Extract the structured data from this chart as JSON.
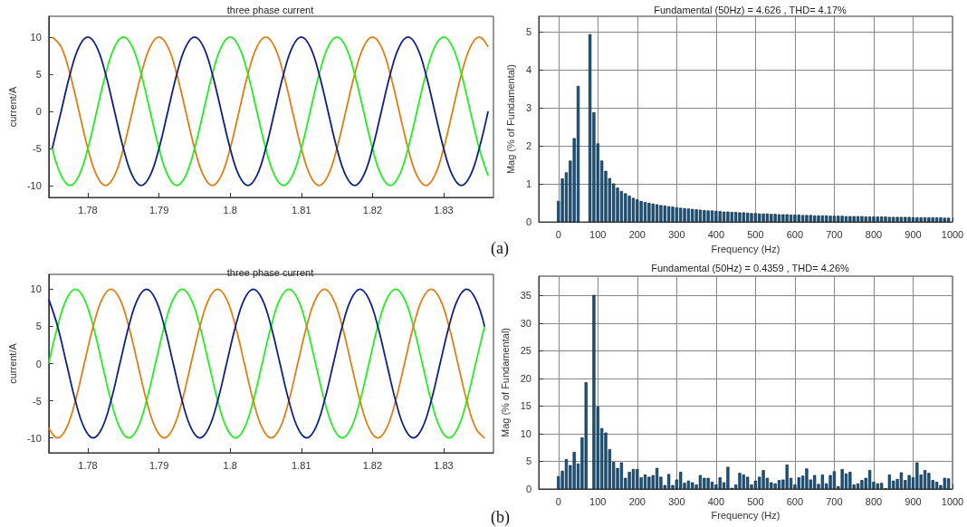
{
  "chart_data": [
    {
      "type": "line",
      "title": "three phase current",
      "ylabel": "current/A",
      "xlim": [
        1.7745,
        1.837
      ],
      "ylim": [
        -11.6,
        12.8
      ],
      "xticks": [
        1.78,
        1.79,
        1.8,
        1.81,
        1.82,
        1.83
      ],
      "yticks": [
        -10,
        -5,
        0,
        5,
        10
      ],
      "grid": false,
      "x": [
        1.775,
        1.77625,
        1.7775,
        1.77875,
        1.78,
        1.78125,
        1.7825,
        1.78375,
        1.785,
        1.78625,
        1.7875,
        1.78875,
        1.79,
        1.79125,
        1.7925,
        1.79375,
        1.795,
        1.79625,
        1.7975,
        1.79875,
        1.8,
        1.80125,
        1.8025,
        1.80375,
        1.805,
        1.80625,
        1.8075,
        1.80875,
        1.81,
        1.81125,
        1.8125,
        1.81375,
        1.815,
        1.81625,
        1.8175,
        1.81875,
        1.82,
        1.82125,
        1.8225,
        1.82375,
        1.825,
        1.82625,
        1.8275,
        1.82875,
        1.83,
        1.83125,
        1.8325,
        1.83375,
        1.835,
        1.83625
      ],
      "series": [
        {
          "color": "#dd7f12",
          "values": [
            10,
            8.66,
            5,
            0,
            -5,
            -8.66,
            -10,
            -8.66,
            -5,
            0,
            5,
            8.66,
            10,
            8.66,
            5,
            0,
            -5,
            -8.66,
            -10,
            -8.66,
            -5,
            0,
            5,
            8.66,
            10,
            8.66,
            5,
            0,
            -5,
            -8.66,
            -10,
            -8.66,
            -5,
            0,
            5,
            8.66,
            10,
            8.66,
            5,
            0,
            -5,
            -8.66,
            -10,
            -8.66,
            -5,
            0,
            5,
            8.66,
            10,
            8.66
          ]
        },
        {
          "color": "#22ee22",
          "values": [
            -5,
            -8.66,
            -10,
            -8.66,
            -5,
            0,
            5,
            8.66,
            10,
            8.66,
            5,
            0,
            -5,
            -8.66,
            -10,
            -8.66,
            -5,
            0,
            5,
            8.66,
            10,
            8.66,
            5,
            0,
            -5,
            -8.66,
            -10,
            -8.66,
            -5,
            0,
            5,
            8.66,
            10,
            8.66,
            5,
            0,
            -5,
            -8.66,
            -10,
            -8.66,
            -5,
            0,
            5,
            8.66,
            10,
            8.66,
            5,
            0,
            -5,
            -8.66
          ]
        },
        {
          "color": "#102080",
          "values": [
            -5,
            0,
            5,
            8.66,
            10,
            8.66,
            5,
            0,
            -5,
            -8.66,
            -10,
            -8.66,
            -5,
            0,
            5,
            8.66,
            10,
            8.66,
            5,
            0,
            -5,
            -8.66,
            -10,
            -8.66,
            -5,
            0,
            5,
            8.66,
            10,
            8.66,
            5,
            0,
            -5,
            -8.66,
            -10,
            -8.66,
            -5,
            0,
            5,
            8.66,
            10,
            8.66,
            5,
            0,
            -5,
            -8.66,
            -10,
            -8.66,
            -5,
            0
          ]
        }
      ]
    },
    {
      "type": "bar",
      "title": "Fundamental (50Hz) = 4.626 , THD= 4.17%",
      "xlabel": "Frequency (Hz)",
      "ylabel": "Mag (% of Fundamental)",
      "annotations": [
        "(a)"
      ],
      "xlim": [
        -50,
        1000
      ],
      "ylim": [
        0,
        5.4
      ],
      "xticks": [
        0,
        100,
        200,
        300,
        400,
        500,
        600,
        700,
        800,
        900,
        1000
      ],
      "yticks": [
        0,
        1,
        2,
        3,
        4,
        5
      ],
      "grid": true,
      "color": "#0d5c94",
      "x": [
        0,
        10,
        20,
        30,
        40,
        50,
        60,
        70,
        80,
        90,
        100,
        110,
        120,
        130,
        140,
        150,
        160,
        170,
        180,
        190,
        200,
        210,
        220,
        230,
        240,
        250,
        260,
        270,
        280,
        290,
        300,
        310,
        320,
        330,
        340,
        350,
        360,
        370,
        380,
        390,
        400,
        410,
        420,
        430,
        440,
        450,
        460,
        470,
        480,
        490,
        500,
        510,
        520,
        530,
        540,
        550,
        560,
        570,
        580,
        590,
        600,
        610,
        620,
        630,
        640,
        650,
        660,
        670,
        680,
        690,
        700,
        710,
        720,
        730,
        740,
        750,
        760,
        770,
        780,
        790,
        800,
        810,
        820,
        830,
        840,
        850,
        860,
        870,
        880,
        890,
        900,
        910,
        920,
        930,
        940,
        950,
        960,
        970,
        980,
        990
      ],
      "values": [
        0.55,
        1.14,
        1.3,
        1.61,
        2.2,
        3.57,
        null,
        null,
        4.93,
        2.88,
        2.06,
        1.61,
        1.34,
        1.15,
        1.01,
        0.9,
        0.81,
        0.75,
        0.69,
        0.63,
        0.59,
        0.55,
        0.52,
        0.5,
        0.48,
        0.46,
        0.44,
        0.43,
        0.41,
        0.4,
        0.38,
        0.37,
        0.36,
        0.35,
        0.34,
        0.33,
        0.32,
        0.31,
        0.3,
        0.3,
        0.29,
        0.28,
        0.27,
        0.27,
        0.26,
        0.26,
        0.25,
        0.25,
        0.24,
        0.23,
        0.23,
        0.22,
        0.22,
        0.22,
        0.21,
        0.21,
        0.2,
        0.2,
        0.2,
        0.19,
        0.19,
        0.19,
        0.18,
        0.18,
        0.18,
        0.17,
        0.17,
        0.17,
        0.17,
        0.16,
        0.16,
        0.16,
        0.16,
        0.15,
        0.15,
        0.15,
        0.15,
        0.15,
        0.14,
        0.14,
        0.14,
        0.14,
        0.14,
        0.14,
        0.13,
        0.13,
        0.13,
        0.13,
        0.13,
        0.13,
        0.12,
        0.12,
        0.12,
        0.12,
        0.12,
        0.12,
        0.12,
        0.12,
        0.11,
        0.11
      ]
    },
    {
      "type": "line",
      "title": "three phase current",
      "ylabel": "current/A",
      "xlim": [
        1.7745,
        1.837
      ],
      "ylim": [
        -12,
        12
      ],
      "xticks": [
        1.78,
        1.79,
        1.8,
        1.81,
        1.82,
        1.83
      ],
      "yticks": [
        -10,
        -5,
        0,
        5,
        10
      ],
      "grid": false,
      "x": [
        1.7745,
        1.77575,
        1.777,
        1.77825,
        1.7795,
        1.78075,
        1.782,
        1.78325,
        1.7845,
        1.78575,
        1.787,
        1.78825,
        1.7895,
        1.79075,
        1.792,
        1.79325,
        1.7945,
        1.79575,
        1.797,
        1.79825,
        1.7995,
        1.80075,
        1.802,
        1.80325,
        1.8045,
        1.80575,
        1.807,
        1.80825,
        1.8095,
        1.81075,
        1.812,
        1.81325,
        1.8145,
        1.81575,
        1.817,
        1.81825,
        1.8195,
        1.82075,
        1.822,
        1.82325,
        1.8245,
        1.82575,
        1.827,
        1.82825,
        1.8295,
        1.83075,
        1.832,
        1.83325,
        1.8345,
        1.83575
      ],
      "series": [
        {
          "color": "#22ee22",
          "values": [
            0,
            5,
            8.66,
            10,
            8.66,
            5,
            0,
            -5,
            -8.66,
            -10,
            -8.66,
            -5,
            0,
            5,
            8.66,
            10,
            8.66,
            5,
            0,
            -5,
            -8.66,
            -10,
            -8.66,
            -5,
            0,
            5,
            8.66,
            10,
            8.66,
            5,
            0,
            -5,
            -8.66,
            -10,
            -8.66,
            -5,
            0,
            5,
            8.66,
            10,
            8.66,
            5,
            0,
            -5,
            -8.66,
            -10,
            -8.66,
            -5,
            0,
            5
          ]
        },
        {
          "color": "#dd7f12",
          "values": [
            -8.66,
            -10,
            -8.66,
            -5,
            0,
            5,
            8.66,
            10,
            8.66,
            5,
            0,
            -5,
            -8.66,
            -10,
            -8.66,
            -5,
            0,
            5,
            8.66,
            10,
            8.66,
            5,
            0,
            -5,
            -8.66,
            -10,
            -8.66,
            -5,
            0,
            5,
            8.66,
            10,
            8.66,
            5,
            0,
            -5,
            -8.66,
            -10,
            -8.66,
            -5,
            0,
            5,
            8.66,
            10,
            8.66,
            5,
            0,
            -5,
            -8.66,
            -10
          ]
        },
        {
          "color": "#102080",
          "values": [
            8.66,
            5,
            0,
            -5,
            -8.66,
            -10,
            -8.66,
            -5,
            0,
            5,
            8.66,
            10,
            8.66,
            5,
            0,
            -5,
            -8.66,
            -10,
            -8.66,
            -5,
            0,
            5,
            8.66,
            10,
            8.66,
            5,
            0,
            -5,
            -8.66,
            -10,
            -8.66,
            -5,
            0,
            5,
            8.66,
            10,
            8.66,
            5,
            0,
            -5,
            -8.66,
            -10,
            -8.66,
            -5,
            0,
            5,
            8.66,
            10,
            8.66,
            5
          ]
        }
      ]
    },
    {
      "type": "bar",
      "title": "Fundamental (50Hz) = 0.4359 , THD= 4.26%",
      "xlabel": "Frequency (Hz)",
      "ylabel": "Mag (% of Fundamental)",
      "annotations": [
        "(b)"
      ],
      "xlim": [
        -50,
        1000
      ],
      "ylim": [
        0,
        38.5
      ],
      "xticks": [
        0,
        100,
        200,
        300,
        400,
        500,
        600,
        700,
        800,
        900,
        1000
      ],
      "yticks": [
        0,
        5,
        10,
        15,
        20,
        25,
        30,
        35
      ],
      "grid": true,
      "color": "#0d5c94",
      "x": [
        0,
        10,
        20,
        30,
        40,
        50,
        60,
        70,
        80,
        90,
        100,
        110,
        120,
        130,
        140,
        150,
        160,
        170,
        180,
        190,
        200,
        210,
        220,
        230,
        240,
        250,
        260,
        270,
        280,
        290,
        300,
        310,
        320,
        330,
        340,
        350,
        360,
        370,
        380,
        390,
        400,
        410,
        420,
        430,
        440,
        450,
        460,
        470,
        480,
        490,
        500,
        510,
        520,
        530,
        540,
        550,
        560,
        570,
        580,
        590,
        600,
        610,
        620,
        630,
        640,
        650,
        660,
        670,
        680,
        690,
        700,
        710,
        720,
        730,
        740,
        750,
        760,
        770,
        780,
        790,
        800,
        810,
        820,
        830,
        840,
        850,
        860,
        870,
        880,
        890,
        900,
        910,
        920,
        930,
        940,
        950,
        960,
        970,
        980,
        990
      ],
      "values": [
        2.3,
        3.3,
        5.4,
        4.3,
        6.7,
        4.6,
        9.3,
        19.3,
        null,
        35.1,
        14.9,
        11.0,
        10.2,
        7.2,
        4.9,
        3.8,
        4.8,
        2.0,
        3.1,
        3.6,
        3.6,
        2.1,
        2.6,
        2.2,
        2.5,
        3.8,
        2.2,
        0.7,
        2.7,
        0.7,
        1.7,
        3.1,
        1.1,
        1.5,
        1.2,
        0.8,
        2.5,
        2.0,
        2.0,
        1.3,
        0.8,
        2.1,
        1.2,
        4.0,
        0.2,
        0.8,
        2.9,
        2.6,
        2.2,
        0.8,
        1.5,
        2.2,
        3.4,
        2.0,
        1.2,
        1.0,
        1.6,
        1.7,
        4.4,
        2.0,
        0.8,
        2.1,
        2.4,
        3.7,
        1.7,
        2.5,
        0.9,
        2.6,
        1.0,
        2.5,
        3.2,
        0.5,
        3.6,
        2.8,
        3.1,
        0.8,
        1.0,
        1.6,
        2.0,
        3.4,
        1.3,
        1.0,
        1.1,
        0.1,
        2.6,
        1.5,
        1.8,
        3.0,
        1.6,
        2.5,
        2.1,
        4.8,
        2.6,
        3.4,
        2.9,
        1.6,
        1.3,
        0.7,
        2.0,
        1.9
      ]
    }
  ]
}
